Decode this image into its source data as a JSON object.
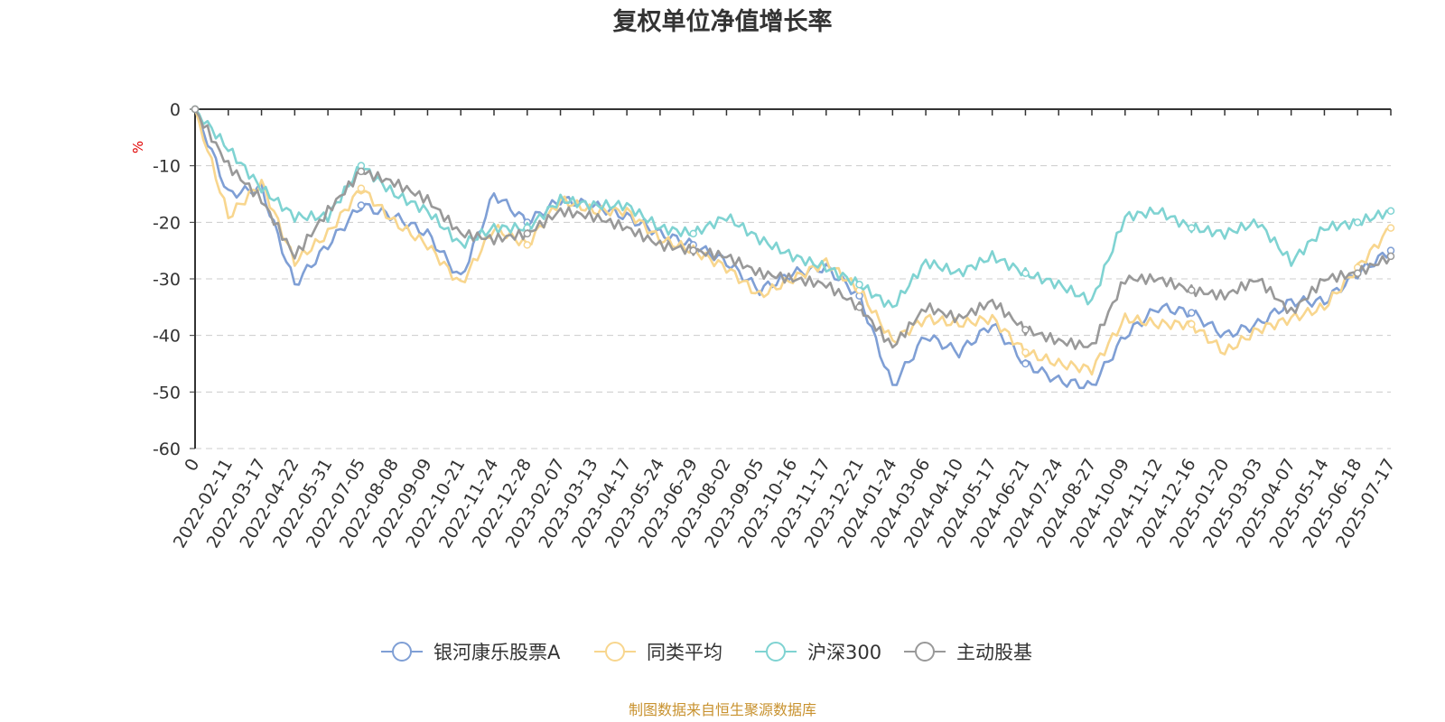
{
  "chart_data": {
    "type": "line",
    "title": "复权单位净值增长率",
    "ylabel": "%",
    "ylim": [
      -60,
      0
    ],
    "yticks": [
      "0",
      "-10",
      "-20",
      "-30",
      "-40",
      "-50",
      "-60"
    ],
    "grid": true,
    "legend_position": "bottom",
    "x_tick_labels": [
      "0",
      "2022-02-11",
      "2022-03-17",
      "2022-04-22",
      "2022-05-31",
      "2022-07-05",
      "2022-08-08",
      "2022-09-09",
      "2022-10-21",
      "2022-11-24",
      "2022-12-28",
      "2023-02-07",
      "2023-03-13",
      "2023-04-17",
      "2023-05-24",
      "2023-06-29",
      "2023-08-02",
      "2023-09-05",
      "2023-10-16",
      "2023-11-17",
      "2023-12-21",
      "2024-01-24",
      "2024-03-06",
      "2024-04-10",
      "2024-05-17",
      "2024-06-21",
      "2024-07-24",
      "2024-08-27",
      "2024-10-09",
      "2024-11-12",
      "2024-12-16",
      "2025-01-20",
      "2025-03-03",
      "2025-04-07",
      "2025-05-14",
      "2025-06-18",
      "2025-07-17"
    ],
    "series": [
      {
        "name": "银河康乐股票A",
        "color": "#7f9fd5",
        "values": [
          0,
          -15,
          -14,
          -31,
          -24,
          -17,
          -19,
          -22,
          -30,
          -15,
          -20,
          -16,
          -17,
          -19,
          -22,
          -24,
          -27,
          -32,
          -29,
          -28,
          -33,
          -49,
          -40,
          -43,
          -38,
          -45,
          -48,
          -49,
          -40,
          -35,
          -36,
          -40,
          -38,
          -34,
          -34,
          -29,
          -25
        ]
      },
      {
        "name": "同类平均",
        "color": "#f8d68e",
        "values": [
          0,
          -19,
          -13,
          -27,
          -22,
          -14,
          -20,
          -24,
          -31,
          -21,
          -24,
          -16,
          -18,
          -18,
          -23,
          -25,
          -28,
          -33,
          -30,
          -27,
          -32,
          -41,
          -37,
          -38,
          -37,
          -43,
          -45,
          -46,
          -37,
          -38,
          -38,
          -43,
          -39,
          -37,
          -35,
          -28,
          -21
        ]
      },
      {
        "name": "沪深300",
        "color": "#7fd3d2",
        "values": [
          0,
          -7,
          -14,
          -19,
          -19,
          -10,
          -15,
          -18,
          -24,
          -21,
          -21,
          -16,
          -17,
          -17,
          -21,
          -22,
          -19,
          -23,
          -26,
          -28,
          -31,
          -35,
          -27,
          -29,
          -26,
          -29,
          -31,
          -34,
          -19,
          -18,
          -21,
          -22,
          -20,
          -27,
          -21,
          -20,
          -18
        ]
      },
      {
        "name": "主动股基",
        "color": "#999999",
        "values": [
          0,
          -10,
          -16,
          -26,
          -18,
          -11,
          -13,
          -16,
          -22,
          -23,
          -22,
          -18,
          -19,
          -21,
          -24,
          -25,
          -26,
          -29,
          -30,
          -31,
          -35,
          -42,
          -35,
          -37,
          -34,
          -39,
          -41,
          -42,
          -30,
          -30,
          -32,
          -33,
          -30,
          -36,
          -30,
          -29,
          -26
        ]
      }
    ]
  },
  "footer": {
    "source": "制图数据来自恒生聚源数据库",
    "source_color": "#c8922f"
  }
}
